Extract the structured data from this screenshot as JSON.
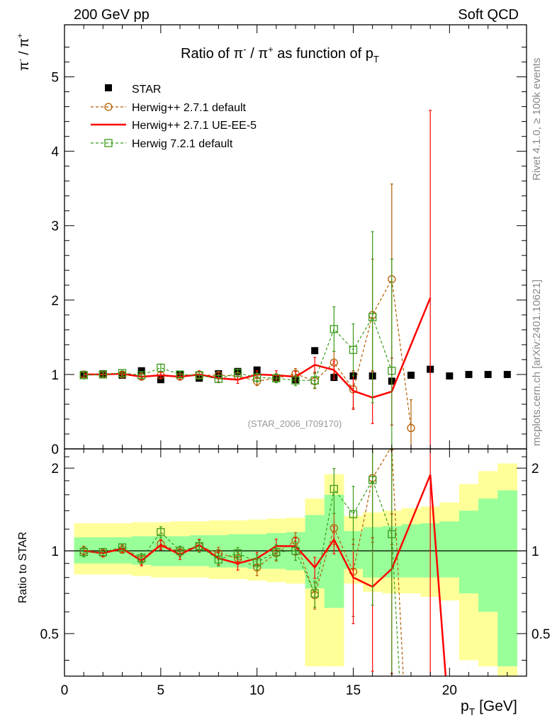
{
  "header": {
    "left": "200 GeV pp",
    "right": "Soft QCD",
    "side_rivet": "Rivet 4.1.0, ≥ 100k events",
    "side_mcplots": "mcplots.cern.ch [arXiv:2401.10621]",
    "watermark": "(STAR_2006_I709170)"
  },
  "colors": {
    "star": "#000000",
    "herwigpp_default": "#b25d00",
    "herwigpp_ueee5": "#ff0000",
    "herwig7": "#3a9a1a",
    "band_inner": "#99ff99",
    "band_outer": "#ffff99"
  },
  "chart_data": [
    {
      "type": "scatter",
      "title": "Ratio of π⁻ / π⁺ as function of p_T",
      "title_parts": {
        "prefix": "Ratio of ",
        "num": "π",
        "num_sup": "-",
        "slash": " / ",
        "den": "π",
        "den_sup": "+",
        "suffix": " as function of p",
        "suffix_sub": "T"
      },
      "ylabel_parts": {
        "num": "π",
        "num_sup": "-",
        "slash": " / ",
        "den": "π",
        "den_sup": "+"
      },
      "xlabel": "",
      "xlim": [
        0,
        24
      ],
      "ylim": [
        0,
        5.7
      ],
      "yticks": [
        0,
        1,
        2,
        3,
        4,
        5
      ],
      "ytick_labels": [
        "0",
        "1",
        "2",
        "3",
        "4",
        "5"
      ],
      "legend": {
        "placement": "top-left",
        "entries": [
          "STAR",
          "Herwig++ 2.7.1 default",
          "Herwig++ 2.7.1 UE-EE-5",
          "Herwig 7.2.1 default"
        ]
      },
      "series": [
        {
          "name": "STAR",
          "style": "square-markers",
          "x": [
            1,
            2,
            3,
            4,
            5,
            6,
            7,
            8,
            9,
            10,
            11,
            12,
            13,
            14,
            15,
            16,
            17,
            18,
            19,
            20,
            21,
            22,
            23
          ],
          "y": [
            1.0,
            1.01,
            0.99,
            1.05,
            0.93,
            1.0,
            0.95,
            1.01,
            1.04,
            1.06,
            0.95,
            0.93,
            1.32,
            0.96,
            0.98,
            0.98,
            0.91,
            0.99,
            1.07,
            0.98,
            1.0,
            1.0,
            1.0
          ]
        },
        {
          "name": "Herwig++ 2.7.1 default",
          "style": "dashed-circles",
          "x": [
            1,
            2,
            3,
            4,
            5,
            6,
            7,
            8,
            9,
            10,
            11,
            12,
            13,
            14,
            15,
            16,
            17,
            18
          ],
          "y": [
            1.0,
            1.0,
            1.0,
            0.97,
            0.99,
            0.97,
            0.99,
            0.99,
            0.98,
            0.91,
            0.95,
            1.01,
            0.91,
            1.16,
            0.8,
            1.8,
            2.28,
            0.28
          ],
          "err_up": [
            0.04,
            0.03,
            0.03,
            0.04,
            0.04,
            0.04,
            0.05,
            0.05,
            0.05,
            0.06,
            0.06,
            0.07,
            0.1,
            0.15,
            0.25,
            0.75,
            1.28,
            0.38
          ],
          "err_down": [
            0.04,
            0.03,
            0.03,
            0.04,
            0.04,
            0.04,
            0.05,
            0.05,
            0.05,
            0.06,
            0.06,
            0.07,
            0.1,
            0.15,
            0.25,
            0.75,
            1.28,
            0.28
          ]
        },
        {
          "name": "Herwig++ 2.7.1 UE-EE-5",
          "style": "solid-line",
          "x": [
            1,
            2,
            3,
            4,
            5,
            6,
            7,
            8,
            9,
            10,
            11,
            12,
            13,
            14,
            15,
            16,
            17,
            19
          ],
          "y": [
            1.0,
            1.0,
            1.01,
            0.97,
            0.99,
            0.97,
            1.0,
            0.95,
            0.93,
            1.0,
            0.99,
            0.97,
            1.13,
            1.06,
            0.78,
            0.69,
            0.77,
            2.03
          ],
          "err_up": [
            0.03,
            0.03,
            0.03,
            0.04,
            0.04,
            0.04,
            0.05,
            0.05,
            0.05,
            0.05,
            0.06,
            0.07,
            0.1,
            0.12,
            0.25,
            0.35,
            0.45,
            2.52
          ],
          "err_down": [
            0.03,
            0.03,
            0.03,
            0.04,
            0.04,
            0.04,
            0.05,
            0.05,
            0.05,
            0.05,
            0.06,
            0.07,
            0.1,
            0.12,
            0.25,
            0.35,
            0.45,
            2.03
          ]
        },
        {
          "name": "Herwig 7.2.1 default",
          "style": "dashed-squares",
          "x": [
            1,
            2,
            3,
            4,
            5,
            6,
            7,
            8,
            9,
            10,
            11,
            12,
            13,
            14,
            15,
            16,
            17
          ],
          "y": [
            0.99,
            1.0,
            1.02,
            0.99,
            1.09,
            1.0,
            0.99,
            0.94,
            1.02,
            0.96,
            0.95,
            0.92,
            0.92,
            1.61,
            1.33,
            1.77,
            1.05
          ],
          "err_up": [
            0.04,
            0.03,
            0.03,
            0.04,
            0.05,
            0.04,
            0.05,
            0.05,
            0.05,
            0.06,
            0.06,
            0.07,
            0.1,
            0.3,
            0.35,
            1.15,
            1.5
          ],
          "err_down": [
            0.04,
            0.03,
            0.03,
            0.04,
            0.05,
            0.04,
            0.05,
            0.05,
            0.05,
            0.06,
            0.06,
            0.07,
            0.1,
            0.3,
            0.35,
            1.15,
            1.05
          ]
        }
      ]
    },
    {
      "type": "line",
      "title": "",
      "ylabel": "Ratio to STAR",
      "xlabel_parts": {
        "main": "p",
        "sub": "T",
        "unit": " [GeV]"
      },
      "xlim": [
        0,
        24
      ],
      "ylim": [
        0.35,
        2.35
      ],
      "yscale": "log",
      "xticks": [
        0,
        5,
        10,
        15,
        20
      ],
      "xtick_labels": [
        "0",
        "5",
        "10",
        "15",
        "20"
      ],
      "yticks": [
        0.5,
        1,
        2
      ],
      "ytick_labels": [
        "0.5",
        "1",
        "2"
      ],
      "bands": {
        "bin_edges": [
          0.5,
          1.5,
          2.5,
          3.5,
          4.5,
          5.5,
          6.5,
          7.5,
          8.5,
          9.5,
          10.5,
          11.5,
          12.5,
          13.5,
          14.5,
          15.5,
          16.5,
          17.5,
          18.5,
          19.5,
          20.5,
          21.5,
          22.5,
          23.5
        ],
        "inner_low": [
          0.9,
          0.9,
          0.9,
          0.89,
          0.88,
          0.88,
          0.88,
          0.87,
          0.87,
          0.86,
          0.86,
          0.85,
          0.73,
          0.62,
          0.86,
          0.8,
          0.8,
          0.8,
          0.8,
          0.8,
          0.7,
          0.6,
          0.38
        ],
        "inner_high": [
          1.12,
          1.12,
          1.12,
          1.13,
          1.13,
          1.13,
          1.14,
          1.14,
          1.15,
          1.15,
          1.16,
          1.17,
          1.35,
          1.6,
          1.18,
          1.22,
          1.23,
          1.25,
          1.26,
          1.28,
          1.4,
          1.55,
          1.66
        ],
        "outer_low": [
          0.82,
          0.82,
          0.82,
          0.81,
          0.8,
          0.8,
          0.8,
          0.79,
          0.79,
          0.78,
          0.77,
          0.76,
          0.38,
          0.38,
          0.76,
          0.71,
          0.7,
          0.7,
          0.68,
          0.66,
          0.4,
          0.38,
          0.35
        ],
        "outer_high": [
          1.26,
          1.26,
          1.26,
          1.27,
          1.27,
          1.28,
          1.28,
          1.29,
          1.29,
          1.3,
          1.31,
          1.32,
          1.55,
          1.9,
          1.34,
          1.38,
          1.4,
          1.43,
          1.45,
          1.5,
          1.75,
          1.95,
          2.08
        ]
      },
      "reference_line": 1,
      "series": [
        {
          "name": "Herwig++ 2.7.1 default",
          "x": [
            1,
            2,
            3,
            4,
            5,
            6,
            7,
            8,
            9,
            10,
            11,
            12,
            13,
            14,
            15,
            16,
            17,
            17.6
          ],
          "y": [
            1.0,
            0.98,
            1.01,
            0.93,
            1.06,
            0.99,
            1.04,
            0.98,
            0.94,
            0.87,
            0.98,
            1.09,
            0.69,
            1.21,
            0.84,
            1.84,
            2.4,
            0.35
          ]
        },
        {
          "name": "Herwig++ 2.7.1 UE-EE-5",
          "x": [
            1,
            2,
            3,
            4,
            5,
            6,
            7,
            8,
            9,
            10,
            11,
            12,
            13,
            14,
            15,
            16,
            17,
            19,
            19.8
          ],
          "y": [
            1.0,
            0.98,
            1.02,
            0.92,
            1.05,
            0.97,
            1.05,
            0.94,
            0.9,
            0.94,
            1.04,
            1.04,
            0.87,
            1.1,
            0.8,
            0.74,
            0.86,
            1.89,
            0.35
          ]
        },
        {
          "name": "Herwig 7.2.1 default",
          "x": [
            1,
            2,
            3,
            4,
            5,
            6,
            7,
            8,
            9,
            10,
            11,
            12,
            13,
            14,
            15,
            16,
            17,
            17.4
          ],
          "y": [
            0.99,
            0.99,
            1.03,
            0.94,
            1.17,
            1.0,
            1.04,
            0.93,
            0.98,
            0.91,
            0.99,
            1.0,
            0.7,
            1.68,
            1.36,
            1.81,
            1.15,
            0.35
          ]
        }
      ]
    }
  ]
}
